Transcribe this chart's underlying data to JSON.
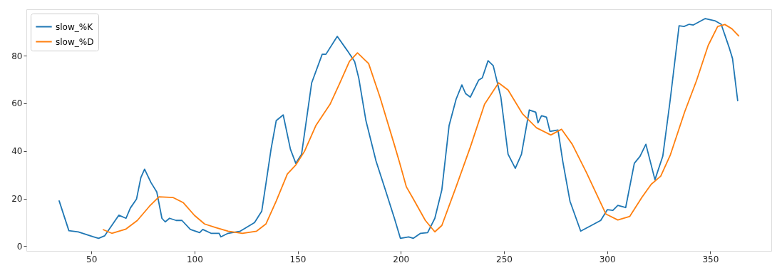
{
  "chart_data": {
    "type": "line",
    "xlim": [
      18.5,
      379.6
    ],
    "ylim": [
      -2,
      99.5
    ],
    "xticks": [
      50,
      100,
      150,
      200,
      250,
      300,
      350
    ],
    "yticks": [
      0,
      20,
      40,
      60,
      80
    ],
    "grid": false,
    "legend": "top left",
    "line_style": "solid",
    "marker": "none",
    "series": [
      {
        "name": "slow_%K",
        "color": "#1f77b4",
        "x": [
          34.4,
          39.1,
          43.7,
          50.6,
          53.5,
          56.4,
          63.3,
          66.8,
          68.9,
          71.9,
          74,
          75.8,
          78.9,
          81.7,
          84.2,
          85.8,
          87.9,
          91.1,
          93.9,
          98,
          102.5,
          104,
          108,
          111.9,
          112.8,
          116.3,
          122.2,
          129.1,
          132.6,
          134.7,
          137.1,
          139.6,
          143,
          146.5,
          149.1,
          151.9,
          156.8,
          161.9,
          163.7,
          169.2,
          174.1,
          177.6,
          179.6,
          183.1,
          188,
          192.5,
          196.9,
          199.8,
          203.8,
          206.1,
          209.6,
          213,
          216.5,
          219.9,
          223.4,
          226.8,
          229.6,
          231.4,
          233.7,
          237.8,
          239.5,
          242.3,
          244.8,
          248.5,
          252,
          255.5,
          258.5,
          262.3,
          265.4,
          266.5,
          268.2,
          270.6,
          272.3,
          276.2,
          278.5,
          282,
          287.2,
          292.4,
          296.9,
          300.1,
          302.8,
          305.2,
          309,
          313.2,
          316,
          318.8,
          323.2,
          327,
          330.5,
          334.9,
          337.3,
          339.8,
          341.8,
          347.6,
          352.2,
          355.3,
          359.1,
          360.8,
          363.3
        ],
        "values": [
          19,
          6.5,
          6,
          4,
          3.3,
          4.3,
          13,
          11.7,
          16,
          19.8,
          28.8,
          32.3,
          26.7,
          22.8,
          11.7,
          10.2,
          11.7,
          10.8,
          10.8,
          7,
          5.7,
          7,
          5.4,
          5.4,
          3.9,
          5.4,
          6.3,
          9.9,
          14.7,
          26.7,
          40.7,
          52.7,
          55.1,
          40.7,
          34.8,
          38.6,
          68.6,
          80.6,
          80.6,
          88.1,
          82.1,
          77.6,
          70.7,
          52.7,
          35.7,
          23.7,
          11.7,
          3.3,
          3.9,
          3.3,
          5.4,
          5.7,
          11.7,
          23.7,
          50.6,
          61.7,
          67.7,
          64.1,
          62.6,
          69.8,
          70.7,
          77.9,
          75.8,
          62.6,
          38.6,
          32.7,
          38.6,
          57.2,
          56.3,
          51.8,
          54.8,
          54.2,
          48.2,
          48.8,
          35.7,
          18.9,
          6.3,
          8.7,
          10.8,
          15.3,
          15,
          17.1,
          16.2,
          34.8,
          37.8,
          42.8,
          27.9,
          37.8,
          60.8,
          92.6,
          92.3,
          93.2,
          92.9,
          95.6,
          94.7,
          93.2,
          83.6,
          78.8,
          61.1
        ]
      },
      {
        "name": "slow_%D",
        "color": "#ff7f0e",
        "x": [
          55.8,
          59.9,
          66.8,
          72.3,
          78.2,
          82.8,
          89.7,
          94.5,
          100,
          104.9,
          110.4,
          116.3,
          123.2,
          130.1,
          134.6,
          139.6,
          145,
          149.2,
          153.3,
          158.8,
          165.7,
          170.5,
          175.1,
          179,
          184.4,
          189.9,
          196.8,
          199.2,
          202.7,
          206.1,
          211.9,
          216.5,
          219.9,
          226.8,
          233.7,
          240.6,
          247.4,
          252,
          258.9,
          265.8,
          272.7,
          277.9,
          283.1,
          290,
          299.4,
          305.2,
          311,
          316.9,
          321.4,
          326,
          330.7,
          337.6,
          343.3,
          349,
          353.6,
          357.1,
          360.5,
          363.8
        ],
        "values": [
          6.9,
          5.4,
          7.2,
          10.8,
          16.8,
          20.7,
          20.4,
          18.3,
          12.9,
          9.3,
          7.8,
          6.3,
          5.4,
          6.3,
          9.3,
          18.9,
          30.3,
          34.2,
          39.8,
          50.6,
          59.6,
          68.6,
          77.6,
          81.2,
          76.7,
          62.6,
          42.8,
          35.7,
          24.9,
          19.8,
          10.8,
          6,
          8.7,
          24.9,
          41.6,
          59.6,
          68.6,
          65.6,
          55.7,
          49.7,
          46.7,
          49.1,
          42.8,
          30.9,
          13.5,
          11,
          12.5,
          20.5,
          26,
          29.4,
          38.4,
          56.4,
          69.4,
          84.3,
          92.3,
          93.1,
          91.3,
          88.3
        ]
      }
    ]
  }
}
